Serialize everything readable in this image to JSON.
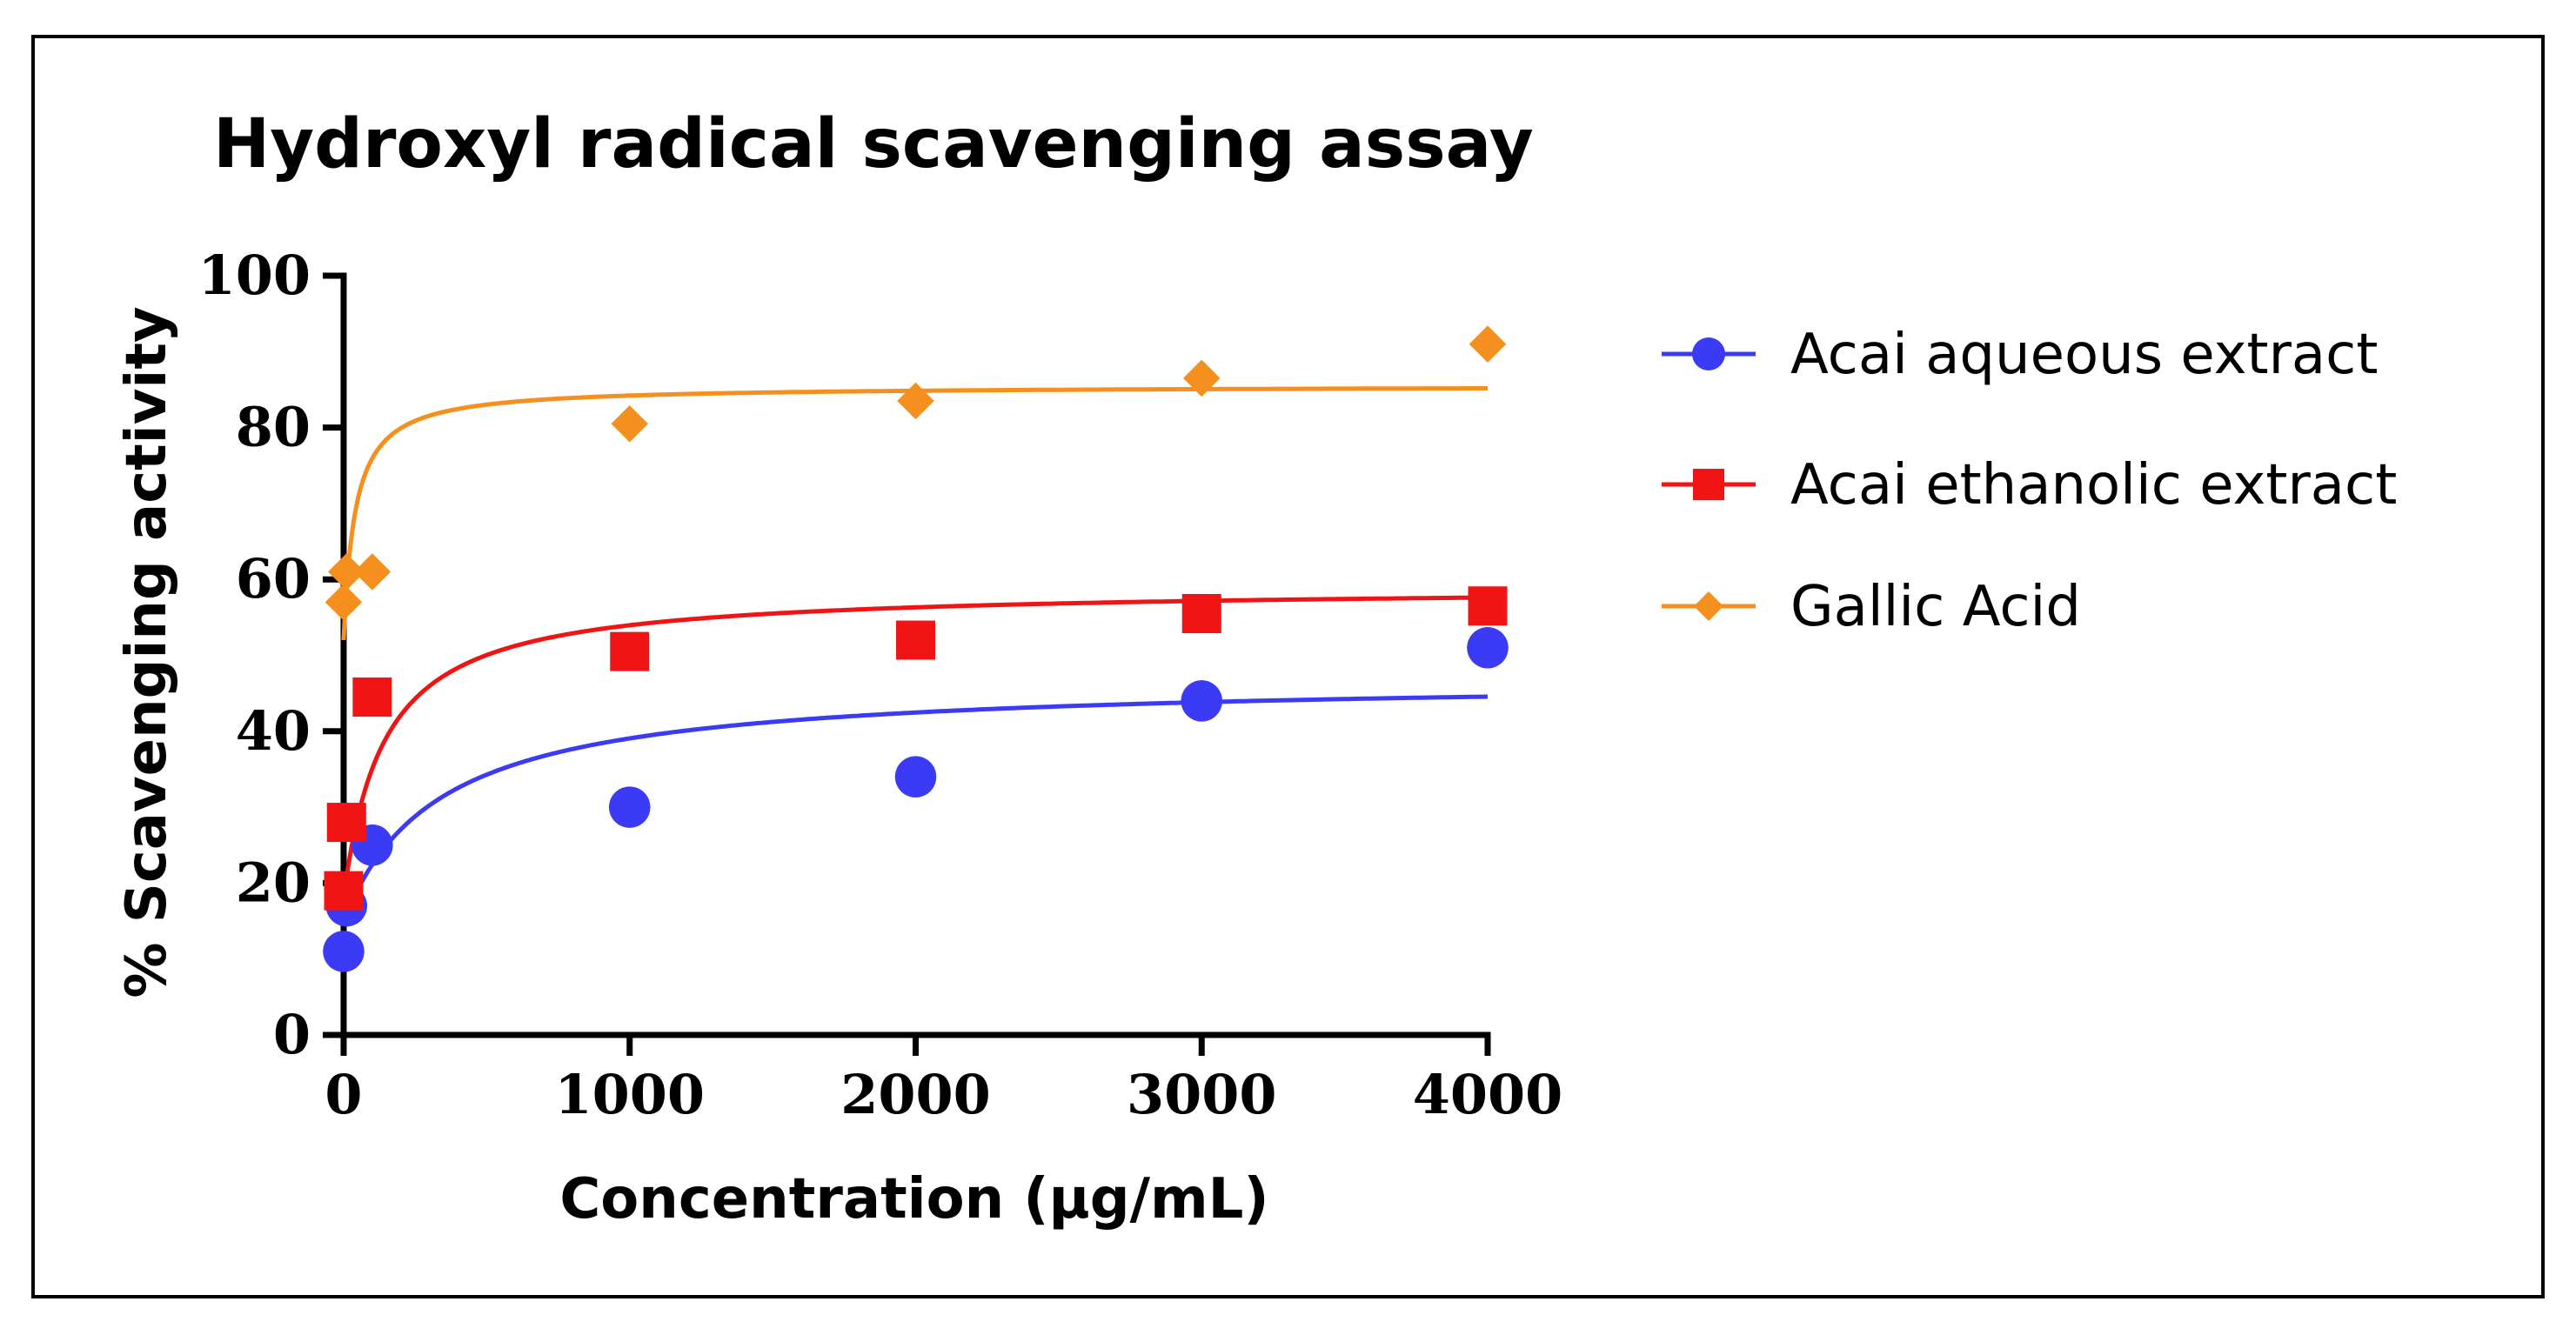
{
  "chart_data": {
    "type": "scatter",
    "title": "Hydroxyl radical scavenging assay",
    "xlabel": "Concentration (µg/mL)",
    "ylabel": "% Scavenging activity",
    "xlim": [
      0,
      4000
    ],
    "ylim": [
      0,
      100
    ],
    "xticks": [
      0,
      1000,
      2000,
      3000,
      4000
    ],
    "yticks": [
      0,
      20,
      40,
      60,
      80,
      100
    ],
    "grid": false,
    "legend_position": "right",
    "series": [
      {
        "name": "Acai aqueous extract",
        "color": "#3b3bf5",
        "marker": "circle",
        "points": [
          [
            0,
            11
          ],
          [
            10,
            17
          ],
          [
            100,
            25
          ],
          [
            1000,
            30
          ],
          [
            2000,
            34
          ],
          [
            3000,
            44
          ],
          [
            4000,
            51
          ]
        ],
        "fit": {
          "y0": 15,
          "ymax": 47,
          "ec50": 330
        }
      },
      {
        "name": "Acai ethanolic extract",
        "color": "#f01414",
        "marker": "square",
        "points": [
          [
            0,
            19
          ],
          [
            10,
            28
          ],
          [
            100,
            44.5
          ],
          [
            1000,
            50.5
          ],
          [
            2000,
            52
          ],
          [
            3000,
            55.5
          ],
          [
            4000,
            56.5
          ]
        ],
        "fit": {
          "y0": 18,
          "ymax": 59,
          "ec50": 140
        }
      },
      {
        "name": "Gallic Acid",
        "color": "#f5901e",
        "marker": "diamond",
        "points": [
          [
            0,
            57
          ],
          [
            10,
            61
          ],
          [
            100,
            61
          ],
          [
            1000,
            80.5
          ],
          [
            2000,
            83.5
          ],
          [
            3000,
            86.5
          ],
          [
            4000,
            91
          ]
        ],
        "fit": {
          "y0": 52,
          "ymax": 85.5,
          "ec50": 40
        }
      }
    ]
  }
}
